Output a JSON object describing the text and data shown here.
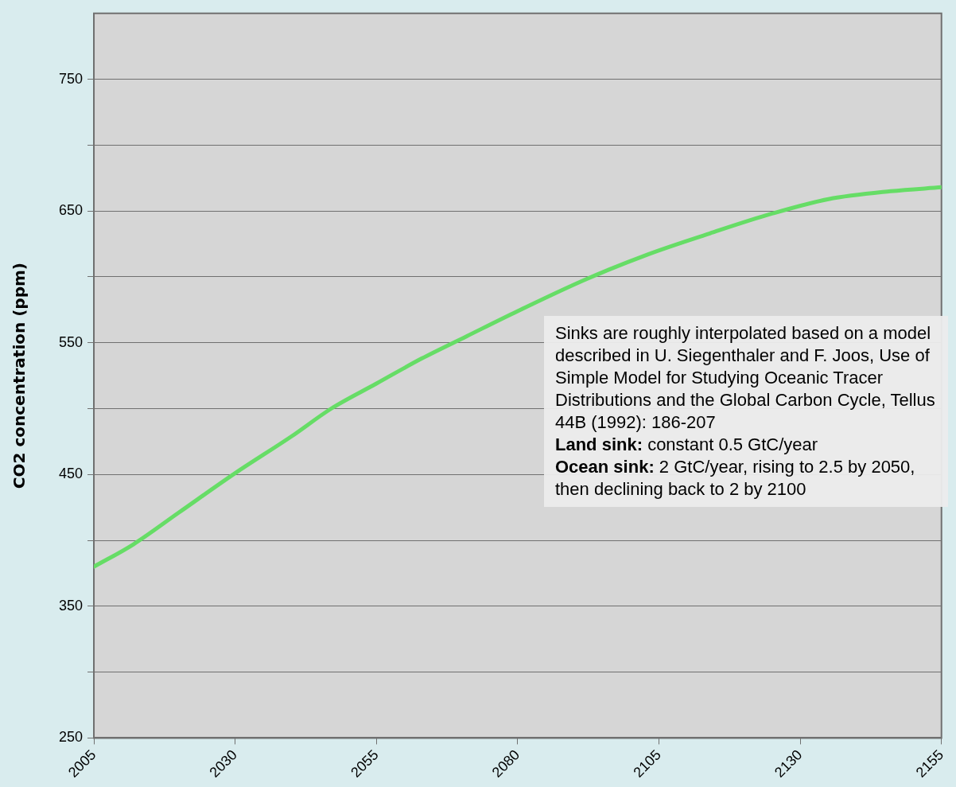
{
  "chart_data": {
    "type": "line",
    "ylabel": "CO2 concentration (ppm)",
    "x": [
      2005,
      2012,
      2020,
      2030,
      2040,
      2047,
      2055,
      2063,
      2071,
      2080,
      2092,
      2103,
      2114,
      2125,
      2135,
      2146,
      2155
    ],
    "series": [
      {
        "color": "#66dd66",
        "values": [
          380,
          397,
          421,
          451,
          479,
          500,
          519,
          538,
          555,
          574,
          598,
          617,
          633,
          648,
          659,
          665,
          668
        ]
      }
    ],
    "xlim": [
      2005,
      2155
    ],
    "xticks": [
      2005,
      2030,
      2055,
      2080,
      2105,
      2130,
      2155
    ],
    "ylim": [
      250,
      800
    ],
    "yticks": [
      250,
      {
        "value": 300,
        "label": null
      },
      350,
      {
        "value": 400,
        "label": null
      },
      450,
      {
        "value": 500,
        "label": null
      },
      550,
      {
        "value": 600,
        "label": null
      },
      650,
      {
        "value": 700,
        "label": null
      },
      750
    ],
    "grid": "y",
    "legend": false,
    "marker": "none",
    "line_style": "solid",
    "annotations": [
      "Sinks are roughly interpolated based on a model described in U. Siegenthaler and F. Joos, Use of Simple Model for Studying Oceanic Tracer Distributions and the Global Carbon Cycle, Tellus 44B (1992): 186-207",
      "Land sink: constant 0.5 GtC/year",
      "Ocean sink: 2 GtC/year, rising to 2.5 by 2050, then declining back to 2 by 2100"
    ]
  }
}
